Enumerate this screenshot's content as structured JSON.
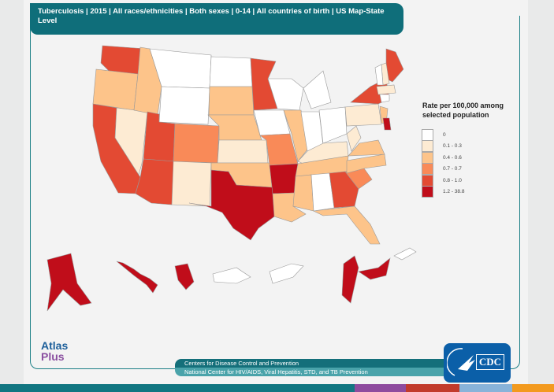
{
  "title": "Tuberculosis | 2015 | All races/ethnicities | Both sexes | 0-14 | All countries of birth | US Map-State Level",
  "legend": {
    "title": "Rate per 100,000 among selected population",
    "items": [
      {
        "label": "0",
        "color": "#ffffff"
      },
      {
        "label": "0.1 - 0.3",
        "color": "#fdebd3"
      },
      {
        "label": "0.4 - 0.6",
        "color": "#fdc48a"
      },
      {
        "label": "0.7 - 0.7",
        "color": "#f98a58"
      },
      {
        "label": "0.8 - 1.0",
        "color": "#e34a33"
      },
      {
        "label": "1.2 - 38.8",
        "color": "#c00d1a"
      }
    ]
  },
  "footer": {
    "line1": "Centers for Disease Control and Prevention",
    "line2": "National Center for HIV/AIDS, Viral Hepatitis, STD, and TB Prevention",
    "atlas_logo": "AtlasPlus",
    "cdc_logo": "CDC"
  },
  "colors": {
    "brand": "#0f6e7a",
    "stripe": [
      "#127681",
      "#8e4b9e",
      "#c23b2c",
      "#88b3d9",
      "#f39a1e"
    ]
  }
}
